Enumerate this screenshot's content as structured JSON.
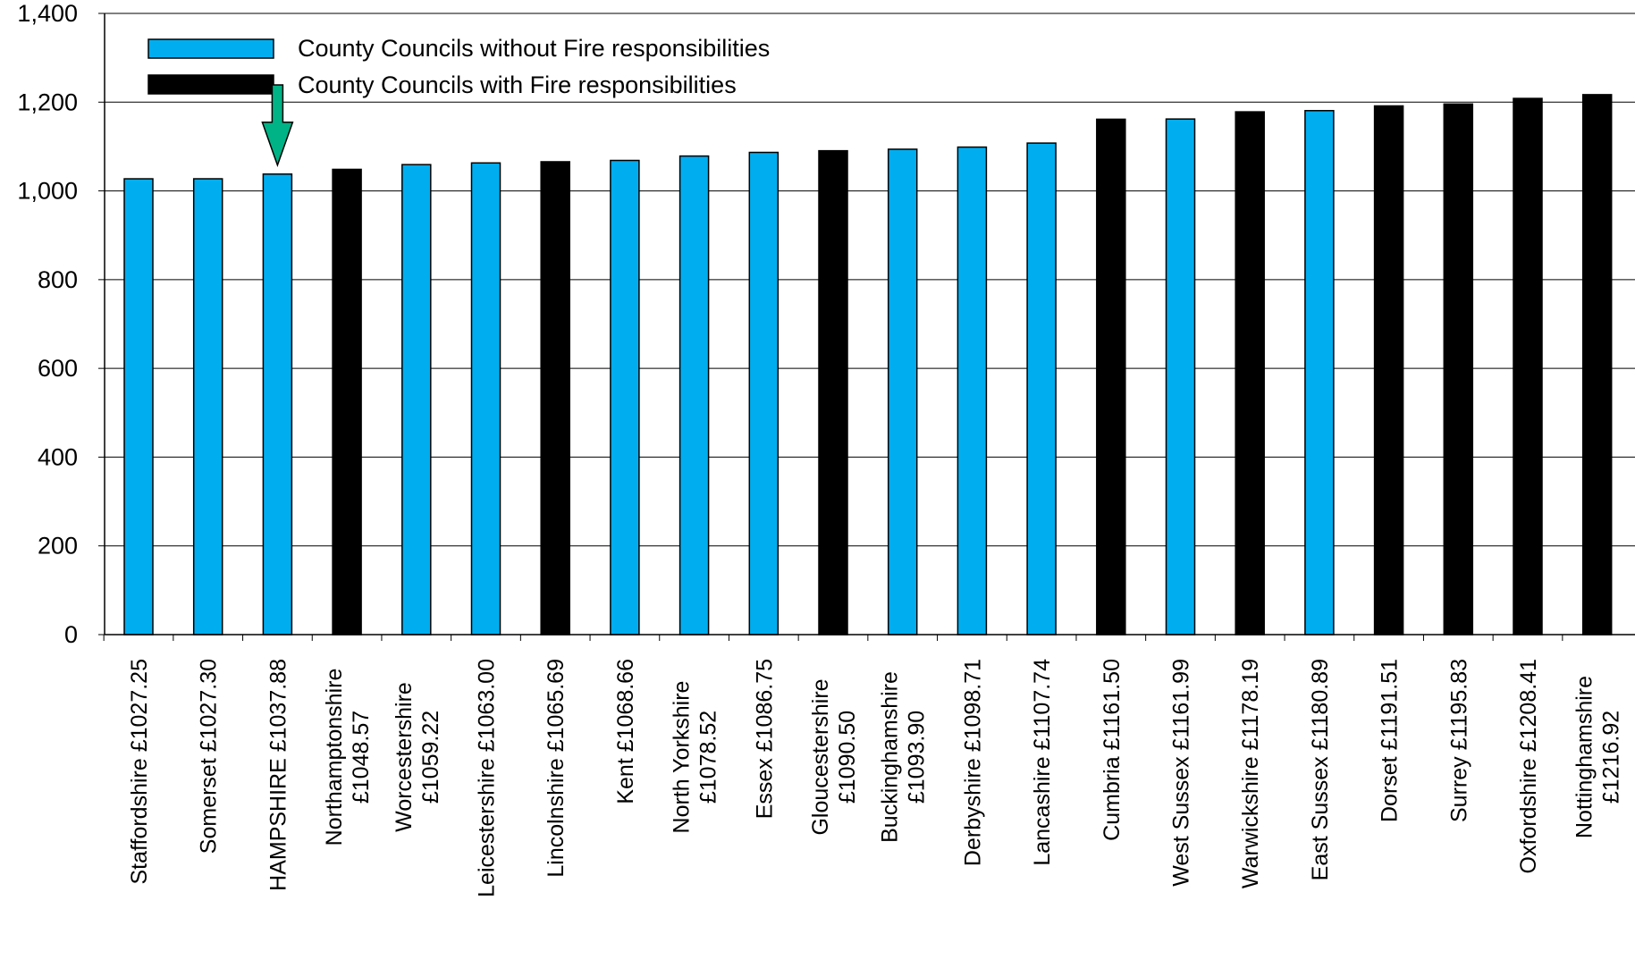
{
  "chart_data": {
    "type": "bar",
    "ylim": [
      0,
      1400
    ],
    "y_ticks": [
      "0",
      "200",
      "400",
      "600",
      "800",
      "1,000",
      "1,200",
      "1,400"
    ],
    "y_tick_values": [
      0,
      200,
      400,
      600,
      800,
      1000,
      1200,
      1400
    ],
    "grid": true,
    "legend_position": "top-left",
    "series": [
      {
        "name": "County Councils without Fire responsibilities",
        "color": "#00aeef"
      },
      {
        "name": "County Councils with Fire responsibilities",
        "color": "#000000"
      }
    ],
    "categories": [
      {
        "label": [
          "Staffordshire £1027.25"
        ],
        "value": 1027.25,
        "series": 0
      },
      {
        "label": [
          "Somerset £1027.30"
        ],
        "value": 1027.3,
        "series": 0
      },
      {
        "label": [
          "HAMPSHIRE £1037.88"
        ],
        "value": 1037.88,
        "series": 0,
        "highlight": true
      },
      {
        "label": [
          "Northamptonshire",
          "£1048.57"
        ],
        "value": 1048.57,
        "series": 1
      },
      {
        "label": [
          "Worcestershire",
          "£1059.22"
        ],
        "value": 1059.22,
        "series": 0
      },
      {
        "label": [
          "Leicestershire £1063.00"
        ],
        "value": 1063.0,
        "series": 0
      },
      {
        "label": [
          "Lincolnshire £1065.69"
        ],
        "value": 1065.69,
        "series": 1
      },
      {
        "label": [
          "Kent £1068.66"
        ],
        "value": 1068.66,
        "series": 0
      },
      {
        "label": [
          "North Yorkshire",
          "£1078.52"
        ],
        "value": 1078.52,
        "series": 0
      },
      {
        "label": [
          "Essex £1086.75"
        ],
        "value": 1086.75,
        "series": 0
      },
      {
        "label": [
          "Gloucestershire",
          "£1090.50"
        ],
        "value": 1090.5,
        "series": 1
      },
      {
        "label": [
          "Buckinghamshire",
          "£1093.90"
        ],
        "value": 1093.9,
        "series": 0
      },
      {
        "label": [
          "Derbyshire £1098.71"
        ],
        "value": 1098.71,
        "series": 0
      },
      {
        "label": [
          "Lancashire £1107.74"
        ],
        "value": 1107.74,
        "series": 0
      },
      {
        "label": [
          "Cumbria £1161.50"
        ],
        "value": 1161.5,
        "series": 1
      },
      {
        "label": [
          "West Sussex £1161.99"
        ],
        "value": 1161.99,
        "series": 0
      },
      {
        "label": [
          "Warwickshire £1178.19"
        ],
        "value": 1178.19,
        "series": 1
      },
      {
        "label": [
          "East Sussex £1180.89"
        ],
        "value": 1180.89,
        "series": 0
      },
      {
        "label": [
          "Dorset £1191.51"
        ],
        "value": 1191.51,
        "series": 1
      },
      {
        "label": [
          "Surrey £1195.83"
        ],
        "value": 1195.83,
        "series": 1
      },
      {
        "label": [
          "Oxfordshire £1208.41"
        ],
        "value": 1208.41,
        "series": 1
      },
      {
        "label": [
          "Nottinghamshire",
          "£1216.92"
        ],
        "value": 1216.92,
        "series": 1
      }
    ],
    "highlight_arrow_color": "#00b386"
  }
}
